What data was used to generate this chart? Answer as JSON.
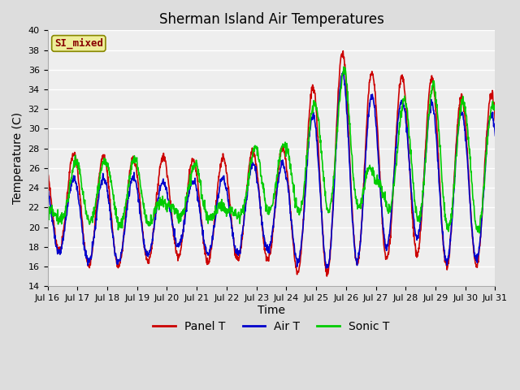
{
  "title": "Sherman Island Air Temperatures",
  "xlabel": "Time",
  "ylabel": "Temperature (C)",
  "ylim": [
    14,
    40
  ],
  "xlim_days": [
    0,
    15
  ],
  "x_tick_labels": [
    "Jul 16",
    "Jul 17",
    "Jul 18",
    "Jul 19",
    "Jul 20",
    "Jul 21",
    "Jul 22",
    "Jul 23",
    "Jul 24",
    "Jul 25",
    "Jul 26",
    "Jul 27",
    "Jul 28",
    "Jul 29",
    "Jul 30",
    "Jul 31"
  ],
  "x_tick_positions": [
    0,
    1,
    2,
    3,
    4,
    5,
    6,
    7,
    8,
    9,
    10,
    11,
    12,
    13,
    14,
    15
  ],
  "panel_color": "#cc0000",
  "air_color": "#0000cc",
  "sonic_color": "#00cc00",
  "bg_color": "#dddddd",
  "plot_bg": "#eeeeee",
  "label_box_color": "#eeee99",
  "label_box_edge": "#888800",
  "label_text": "SI_mixed",
  "label_text_color": "#880000",
  "title_fontsize": 12,
  "axis_fontsize": 10,
  "tick_fontsize": 8,
  "legend_fontsize": 10,
  "line_width": 1.2,
  "panel_peaks": [
    27.0,
    27.5,
    27.2,
    27.0,
    27.2,
    26.8,
    27.0,
    27.8,
    28.0,
    35.0,
    38.0,
    35.5,
    35.2,
    35.0,
    33.0,
    33.5
  ],
  "panel_valleys": [
    18.5,
    16.2,
    16.0,
    16.0,
    17.5,
    16.5,
    16.5,
    17.0,
    16.0,
    14.5,
    16.5,
    16.0,
    18.0,
    16.0,
    16.0,
    16.5
  ],
  "air_peaks": [
    25.0,
    25.0,
    25.0,
    25.2,
    24.5,
    24.8,
    25.0,
    26.5,
    26.5,
    32.0,
    36.0,
    33.0,
    32.8,
    32.5,
    31.5,
    31.5
  ],
  "air_valleys": [
    18.0,
    16.5,
    16.5,
    16.5,
    18.5,
    17.5,
    17.0,
    18.0,
    17.0,
    15.5,
    16.5,
    16.5,
    20.5,
    16.5,
    16.5,
    17.0
  ],
  "sonic_peaks": [
    21.5,
    27.0,
    26.8,
    26.8,
    22.2,
    26.8,
    21.5,
    28.5,
    28.5,
    33.0,
    36.2,
    24.5,
    33.5,
    34.5,
    32.8,
    32.5
  ],
  "sonic_valleys": [
    21.0,
    20.5,
    20.5,
    20.0,
    21.0,
    21.0,
    20.5,
    21.5,
    21.5,
    21.5,
    22.0,
    22.0,
    21.5,
    20.0,
    19.5,
    20.0
  ],
  "samples_per_day": 96,
  "peak_phase": 0.625,
  "sonic_low_days": 9
}
